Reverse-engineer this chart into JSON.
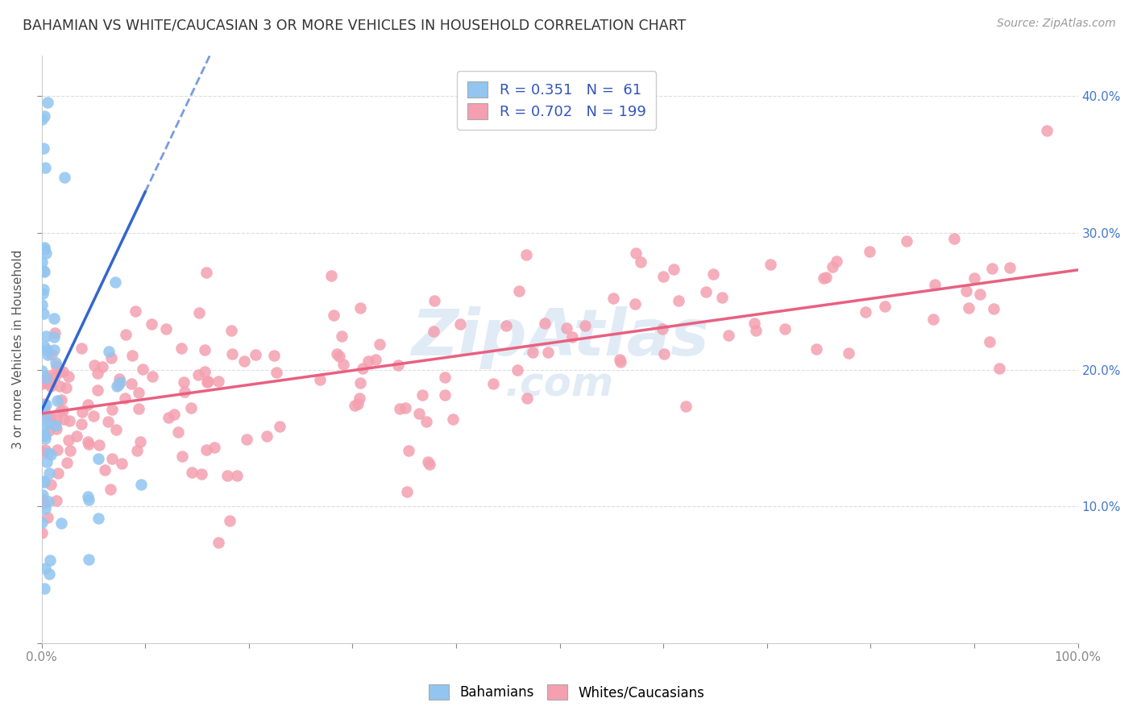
{
  "title": "BAHAMIAN VS WHITE/CAUCASIAN 3 OR MORE VEHICLES IN HOUSEHOLD CORRELATION CHART",
  "source": "Source: ZipAtlas.com",
  "ylabel": "3 or more Vehicles in Household",
  "R_bahamian": 0.351,
  "N_bahamian": 61,
  "R_white": 0.702,
  "N_white": 199,
  "color_bahamian": "#92C5F0",
  "color_bahamian_line": "#3366CC",
  "color_white": "#F4A0B0",
  "color_white_line": "#E86080",
  "legend_label_bahamian": "Bahamians",
  "legend_label_white": "Whites/Caucasians",
  "xlim": [
    0,
    1.0
  ],
  "ylim": [
    0,
    0.43
  ],
  "yticks": [
    0.0,
    0.1,
    0.2,
    0.3,
    0.4
  ],
  "xtick_labels": {
    "0.0": "0.0%",
    "1.0": "100.0%"
  },
  "right_ytick_labels": [
    "10.0%",
    "20.0%",
    "30.0%",
    "40.0%"
  ],
  "right_ytick_vals": [
    0.1,
    0.2,
    0.3,
    0.4
  ],
  "watermark_color": "#C8DCF0",
  "grid_color": "#DDDDDD",
  "bah_line_intercept": 0.17,
  "bah_line_slope": 1.6,
  "bah_line_solid_end": 0.1,
  "bah_line_dash_end": 0.26,
  "white_line_intercept": 0.168,
  "white_line_slope": 0.105
}
